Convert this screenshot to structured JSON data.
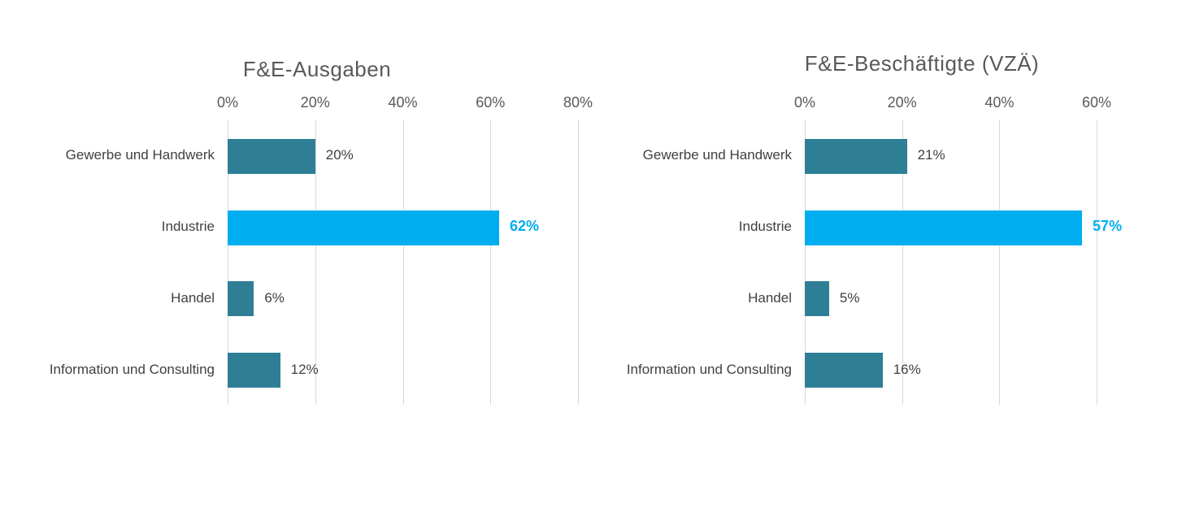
{
  "page": {
    "background": "#ffffff"
  },
  "colors": {
    "bar": "#2E7F96",
    "bar_highlight": "#00AEEF",
    "value_label_highlight": "#00AEEF",
    "gridline": "#D9D9D9",
    "title_text": "#595959",
    "tick_text": "#595959",
    "category_text": "#404040",
    "value_text": "#404040"
  },
  "chart_data": [
    {
      "type": "bar",
      "orientation": "horizontal",
      "title": "F&E-Ausgaben",
      "categories": [
        "Gewerbe und Handwerk",
        "Industrie",
        "Handel",
        "Information und Consulting"
      ],
      "values": [
        20,
        62,
        6,
        12
      ],
      "value_labels": [
        "20%",
        "62%",
        "6%",
        "12%"
      ],
      "highlight_index": 1,
      "highlight_category": "Industrie",
      "tick_labels": [
        "0%",
        "20%",
        "40%",
        "60%",
        "80%"
      ],
      "tick_values": [
        0,
        20,
        40,
        60,
        80
      ],
      "xlim": [
        0,
        80
      ],
      "grid": true,
      "legend": false,
      "unit": "%"
    },
    {
      "type": "bar",
      "orientation": "horizontal",
      "title": "F&E-Beschäftigte (VZÄ)",
      "categories": [
        "Gewerbe und Handwerk",
        "Industrie",
        "Handel",
        "Information und Consulting"
      ],
      "values": [
        21,
        57,
        5,
        16
      ],
      "value_labels": [
        "21%",
        "57%",
        "5%",
        "16%"
      ],
      "highlight_index": 1,
      "highlight_category": "Industrie",
      "tick_labels": [
        "0%",
        "20%",
        "40%",
        "60%"
      ],
      "tick_values": [
        0,
        20,
        40,
        60
      ],
      "xlim": [
        0,
        60
      ],
      "grid": true,
      "legend": false,
      "unit": "%"
    }
  ]
}
